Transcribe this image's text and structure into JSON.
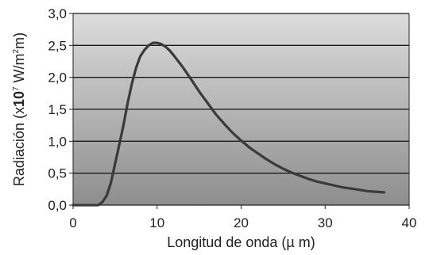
{
  "chart_data": {
    "type": "line",
    "title": "",
    "xlabel": "Longitud de onda (µ m)",
    "ylabel": {
      "prefix": "Radiación (x",
      "bold": "10",
      "exp1": "7",
      "mid": " W/m",
      "exp2": "2",
      "suffix": "m)"
    },
    "xlim": [
      0,
      40
    ],
    "ylim": [
      0,
      3.0
    ],
    "x_ticks": [
      0,
      10,
      20,
      30,
      40
    ],
    "x_tick_labels": [
      "0",
      "10",
      "20",
      "30",
      "40"
    ],
    "y_ticks": [
      0.0,
      0.5,
      1.0,
      1.5,
      2.0,
      2.5,
      3.0
    ],
    "y_tick_labels": [
      "0,0",
      "0,5",
      "1,0",
      "1,5",
      "2,0",
      "2,5",
      "3,0"
    ],
    "grid": "horizontal",
    "colors": {
      "line": "#3a3a3a",
      "plot_bg_top": "#dcdcdc",
      "plot_bg_bottom": "#8e8e8e",
      "gridline": "#1a1a1a"
    },
    "series": [
      {
        "x": [
          0,
          1,
          2,
          3,
          3.5,
          4,
          4.5,
          5,
          5.5,
          6,
          6.5,
          7,
          7.5,
          8,
          8.5,
          9,
          9.5,
          10,
          10.5,
          11,
          11.5,
          12,
          13,
          14,
          15,
          16,
          17,
          18,
          19,
          20,
          21,
          22,
          23,
          24,
          25,
          26,
          27,
          28,
          29,
          30,
          31,
          32,
          33,
          34,
          35,
          36,
          37
        ],
        "y": [
          0.0,
          0.0,
          0.0,
          0.0,
          0.05,
          0.15,
          0.35,
          0.65,
          0.95,
          1.25,
          1.6,
          1.9,
          2.15,
          2.33,
          2.43,
          2.5,
          2.54,
          2.54,
          2.52,
          2.48,
          2.42,
          2.34,
          2.17,
          1.98,
          1.78,
          1.6,
          1.42,
          1.27,
          1.13,
          1.01,
          0.9,
          0.81,
          0.72,
          0.64,
          0.57,
          0.51,
          0.46,
          0.41,
          0.37,
          0.34,
          0.31,
          0.28,
          0.26,
          0.24,
          0.22,
          0.21,
          0.2
        ]
      }
    ]
  }
}
